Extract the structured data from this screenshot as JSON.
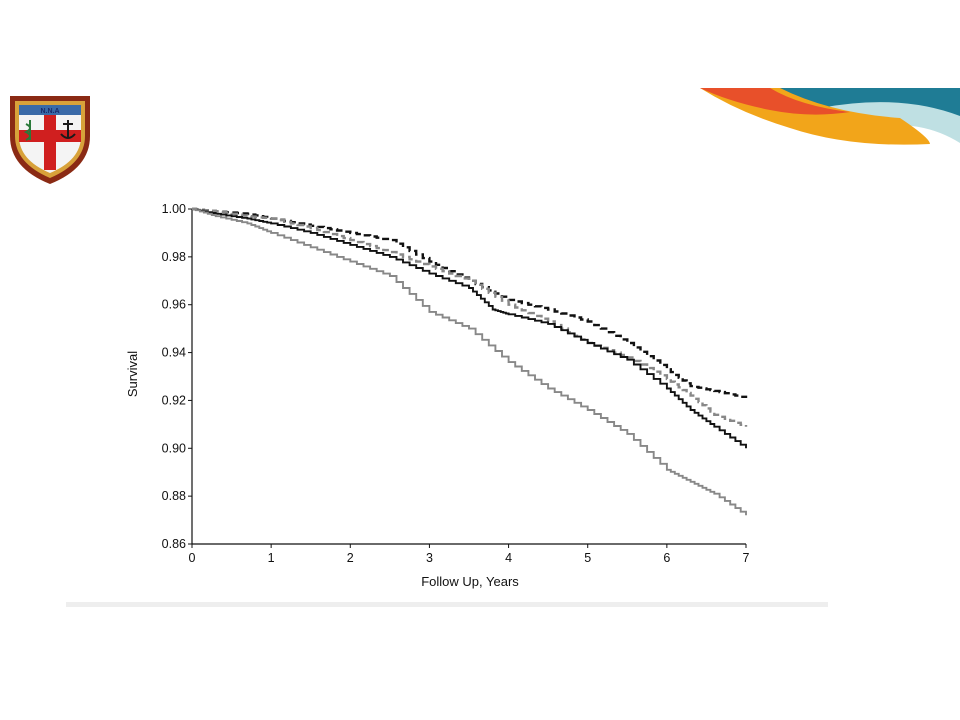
{
  "slide": {
    "logo": {
      "icon": "naval-academy-crest-icon",
      "text": "N.N.A",
      "colors": {
        "frame": "#8a2a14",
        "gold": "#d8a23a",
        "blue": "#3a6aa8",
        "cross": "#d01f1f"
      }
    },
    "banner": {
      "icon": "decorative-wave-banner",
      "colors": [
        "#e8502a",
        "#f2a51a",
        "#1f7c95",
        "#bfe0e3"
      ]
    }
  },
  "chart_data": {
    "type": "line",
    "title": "",
    "xlabel": "Follow Up, Years",
    "ylabel": "Survival",
    "xlim": [
      0,
      7
    ],
    "ylim": [
      0.86,
      1.0
    ],
    "x_ticks": [
      "0",
      "1",
      "2",
      "3",
      "4",
      "5",
      "6",
      "7"
    ],
    "y_ticks": [
      "0.86",
      "0.88",
      "0.90",
      "0.92",
      "0.94",
      "0.96",
      "0.98",
      "1.00"
    ],
    "grid": false,
    "legend": "none",
    "series": [
      {
        "style": "dashed",
        "color": "#111111",
        "x": [
          0,
          0.3,
          0.7,
          1.0,
          1.5,
          2.0,
          2.5,
          3.0,
          3.5,
          4.0,
          4.5,
          5.0,
          5.5,
          6.0,
          6.3,
          6.6,
          7.0
        ],
        "y": [
          1.0,
          0.999,
          0.998,
          0.996,
          0.993,
          0.99,
          0.987,
          0.978,
          0.97,
          0.962,
          0.958,
          0.953,
          0.944,
          0.933,
          0.926,
          0.924,
          0.921
        ]
      },
      {
        "style": "dashed",
        "color": "#888888",
        "x": [
          0,
          0.3,
          0.7,
          1.0,
          1.5,
          2.0,
          2.5,
          3.0,
          3.5,
          4.0,
          4.5,
          5.0,
          5.5,
          6.0,
          6.3,
          6.6,
          7.0
        ],
        "y": [
          1.0,
          0.999,
          0.997,
          0.996,
          0.992,
          0.987,
          0.982,
          0.976,
          0.97,
          0.96,
          0.953,
          0.944,
          0.938,
          0.929,
          0.922,
          0.914,
          0.909
        ]
      },
      {
        "style": "solid",
        "color": "#111111",
        "x": [
          0,
          0.3,
          0.7,
          1.0,
          1.5,
          2.0,
          2.5,
          3.0,
          3.5,
          3.8,
          4.0,
          4.5,
          5.0,
          5.5,
          6.0,
          6.3,
          6.6,
          7.0
        ],
        "y": [
          1.0,
          0.998,
          0.996,
          0.994,
          0.99,
          0.985,
          0.98,
          0.973,
          0.967,
          0.958,
          0.956,
          0.952,
          0.944,
          0.937,
          0.925,
          0.916,
          0.909,
          0.9
        ]
      },
      {
        "style": "solid",
        "color": "#888888",
        "x": [
          0,
          0.3,
          0.7,
          1.0,
          1.5,
          2.0,
          2.5,
          3.0,
          3.5,
          4.0,
          4.5,
          5.0,
          5.5,
          6.0,
          6.3,
          6.6,
          7.0
        ],
        "y": [
          1.0,
          0.997,
          0.994,
          0.99,
          0.984,
          0.978,
          0.972,
          0.957,
          0.95,
          0.936,
          0.925,
          0.916,
          0.906,
          0.891,
          0.886,
          0.881,
          0.872
        ]
      }
    ]
  }
}
